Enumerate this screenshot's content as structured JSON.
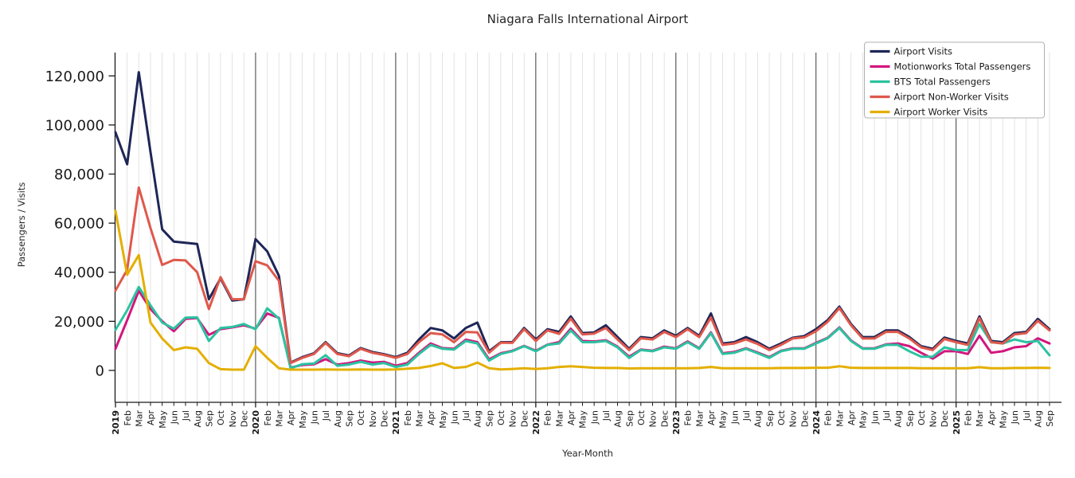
{
  "title": "Niagara Falls International Airport",
  "chart_data": {
    "type": "line",
    "title": "Niagara Falls International Airport",
    "xlabel": "Year-Month",
    "ylabel": "Passengers / Visits",
    "legend_position": "upper right",
    "grid": "vertical monthly gridlines, dark line at each January",
    "ylim": [
      -13000,
      129500
    ],
    "y_ticks": [
      0,
      20000,
      40000,
      60000,
      80000,
      100000,
      120000
    ],
    "x_labels": [
      "2019",
      "Feb",
      "Mar",
      "Apr",
      "May",
      "Jun",
      "Jul",
      "Aug",
      "Sep",
      "Oct",
      "Nov",
      "Dec",
      "2020",
      "Feb",
      "Mar",
      "Apr",
      "May",
      "Jun",
      "Jul",
      "Aug",
      "Sep",
      "Oct",
      "Nov",
      "Dec",
      "2021",
      "Feb",
      "Mar",
      "Apr",
      "May",
      "Jun",
      "Jul",
      "Aug",
      "Sep",
      "Oct",
      "Nov",
      "Dec",
      "2022",
      "Feb",
      "Mar",
      "Apr",
      "May",
      "Jun",
      "Jul",
      "Aug",
      "Sep",
      "Oct",
      "Nov",
      "Dec",
      "2023",
      "Feb",
      "Mar",
      "Apr",
      "May",
      "Jun",
      "Jul",
      "Aug",
      "Sep",
      "Oct",
      "Nov",
      "Dec",
      "2024",
      "Feb",
      "Mar",
      "Apr",
      "May",
      "Jun",
      "Jul",
      "Aug",
      "Sep",
      "Oct",
      "Nov",
      "Dec",
      "2025",
      "Feb",
      "Mar",
      "Apr",
      "May",
      "Jun",
      "Jul",
      "Aug",
      "Sep"
    ],
    "series": [
      {
        "name": "Airport Visits",
        "color": "#1e2657",
        "values": [
          97000,
          84000,
          121500,
          89000,
          57500,
          52500,
          52000,
          51500,
          29000,
          37500,
          28500,
          29000,
          53500,
          48500,
          38500,
          3200,
          5400,
          7000,
          11500,
          7000,
          6100,
          9100,
          7500,
          6600,
          5400,
          7200,
          12600,
          17300,
          16300,
          13000,
          17300,
          19500,
          7800,
          11500,
          11500,
          17300,
          12600,
          16800,
          15700,
          22000,
          15200,
          15500,
          18400,
          13600,
          8800,
          13600,
          13100,
          16300,
          14100,
          17300,
          14100,
          23200,
          11000,
          11500,
          13600,
          11500,
          8800,
          11000,
          13300,
          14000,
          16800,
          20500,
          26000,
          18900,
          13600,
          13600,
          16300,
          16300,
          13600,
          9900,
          8800,
          13400,
          12000,
          11000,
          22000,
          12000,
          11500,
          15200,
          15700,
          21000,
          16800
        ]
      },
      {
        "name": "Motionworks Total Passengers",
        "color": "#d2167e",
        "values": [
          8800,
          20500,
          32500,
          25000,
          20000,
          16000,
          21000,
          21300,
          14500,
          16800,
          17500,
          18400,
          17000,
          23200,
          21400,
          1200,
          2200,
          2500,
          4600,
          2400,
          3000,
          4000,
          3200,
          3500,
          1900,
          3000,
          7200,
          11000,
          9100,
          8800,
          12500,
          11500,
          4500,
          7000,
          8000,
          10000,
          8000,
          10500,
          11500,
          17000,
          12000,
          11800,
          12300,
          9700,
          5600,
          8500,
          8000,
          9700,
          9000,
          11800,
          9000,
          15500,
          7000,
          7500,
          9000,
          7300,
          5400,
          8000,
          9000,
          9000,
          11200,
          13300,
          17500,
          12200,
          9000,
          9000,
          10600,
          11000,
          9900,
          7200,
          4800,
          7800,
          7800,
          6700,
          14100,
          7200,
          7800,
          9400,
          9900,
          13100,
          11000
        ]
      },
      {
        "name": "BTS Total Passengers",
        "color": "#2cc2a0",
        "values": [
          16500,
          24500,
          34000,
          26500,
          19500,
          17000,
          21500,
          21600,
          12000,
          17300,
          17700,
          18900,
          16800,
          25300,
          21100,
          900,
          2500,
          2800,
          6200,
          1900,
          2400,
          3500,
          2400,
          3000,
          1400,
          2400,
          6700,
          10400,
          8800,
          8500,
          12000,
          11000,
          4000,
          6700,
          7800,
          9900,
          7800,
          10400,
          11000,
          16300,
          11500,
          11500,
          12000,
          9400,
          5100,
          8300,
          7800,
          9400,
          8800,
          11500,
          8800,
          15200,
          6700,
          7200,
          8800,
          7000,
          5100,
          7800,
          8800,
          8800,
          11000,
          13100,
          17300,
          12000,
          8800,
          8800,
          10400,
          10400,
          7800,
          5600,
          5600,
          9400,
          8300,
          8300,
          18900,
          11500,
          11000,
          12600,
          11500,
          12000,
          6200
        ]
      },
      {
        "name": "Airport Non-Worker Visits",
        "color": "#df584c",
        "values": [
          32500,
          41000,
          74500,
          58000,
          43000,
          45000,
          44800,
          40000,
          25000,
          38000,
          29000,
          29000,
          44500,
          42800,
          36500,
          3000,
          5100,
          6700,
          11200,
          6700,
          5800,
          8800,
          7200,
          6300,
          5100,
          6700,
          11500,
          15200,
          14700,
          11500,
          15700,
          15500,
          7200,
          11300,
          11200,
          16800,
          12000,
          16300,
          14900,
          21100,
          14700,
          15000,
          17300,
          12600,
          8300,
          13100,
          12600,
          15700,
          13600,
          16800,
          13600,
          21600,
          10400,
          11000,
          12600,
          10800,
          8300,
          10400,
          13000,
          13500,
          16000,
          19800,
          25400,
          18400,
          13000,
          13000,
          15700,
          15700,
          13000,
          9400,
          8300,
          12800,
          11500,
          10400,
          21300,
          11500,
          11000,
          14700,
          15200,
          20200,
          16300
        ]
      },
      {
        "name": "Airport Worker Visits",
        "color": "#e4af00",
        "values": [
          65000,
          39000,
          47000,
          19500,
          13000,
          8300,
          9400,
          8800,
          3000,
          500,
          300,
          300,
          9900,
          5100,
          900,
          300,
          300,
          300,
          400,
          300,
          300,
          400,
          300,
          300,
          400,
          700,
          1000,
          1800,
          2900,
          1000,
          1400,
          3200,
          900,
          400,
          600,
          900,
          600,
          900,
          1400,
          1700,
          1400,
          1100,
          1000,
          1000,
          800,
          900,
          900,
          900,
          900,
          900,
          1000,
          1400,
          900,
          900,
          900,
          900,
          900,
          1000,
          1000,
          1000,
          1100,
          1100,
          1700,
          1100,
          1000,
          1000,
          1000,
          1000,
          1000,
          900,
          900,
          900,
          900,
          900,
          1300,
          900,
          900,
          1000,
          1000,
          1100,
          1000
        ]
      }
    ]
  }
}
